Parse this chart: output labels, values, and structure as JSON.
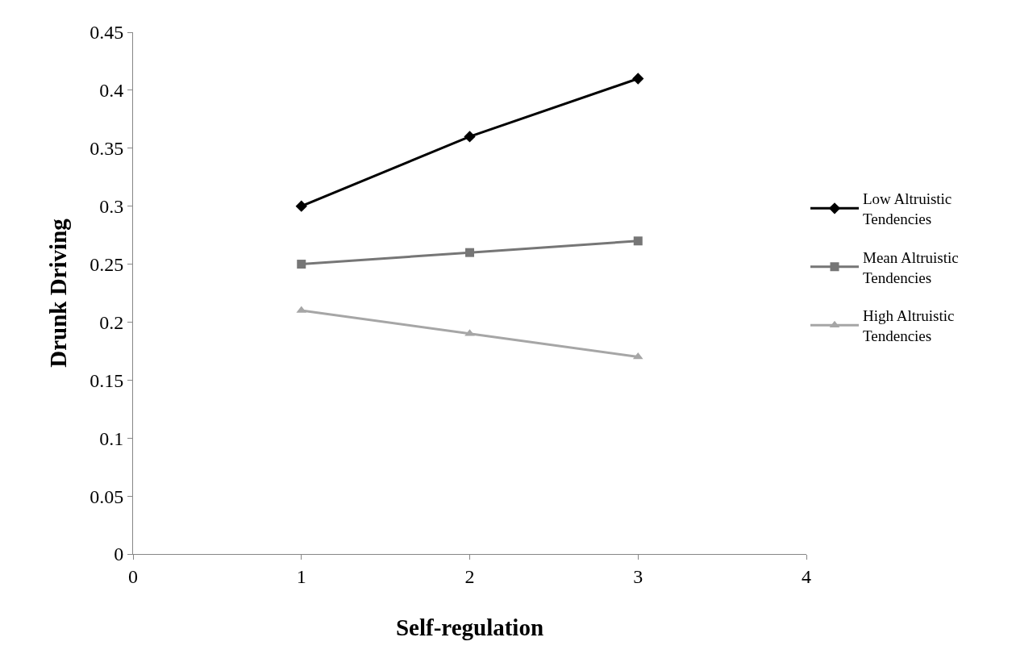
{
  "chart_data": {
    "type": "line",
    "xlabel": "Self-regulation",
    "ylabel": "Drunk Driving",
    "x": [
      1,
      2,
      3
    ],
    "series": [
      {
        "name": "Low Altruistic Tendencies",
        "color": "#000000",
        "marker": "diamond",
        "values": [
          0.3,
          0.36,
          0.41
        ]
      },
      {
        "name": "Mean Altruistic Tendencies",
        "color": "#767676",
        "marker": "square",
        "values": [
          0.25,
          0.26,
          0.27
        ]
      },
      {
        "name": "High Altruistic Tendencies",
        "color": "#a6a6a6",
        "marker": "triangle",
        "values": [
          0.21,
          0.19,
          0.17
        ]
      }
    ],
    "xlim": [
      0,
      4
    ],
    "xticks": [
      0,
      1,
      2,
      3,
      4
    ],
    "ylim": [
      0,
      0.45
    ],
    "yticks": [
      0,
      0.05,
      0.1,
      0.15,
      0.2,
      0.25,
      0.3,
      0.35,
      0.4,
      0.45
    ],
    "grid": false,
    "legend": "right",
    "line_style": "solid"
  }
}
